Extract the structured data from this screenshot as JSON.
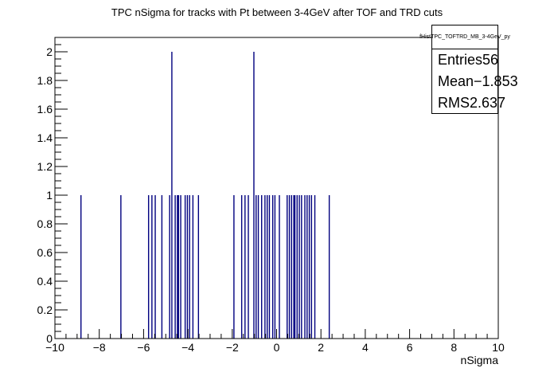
{
  "chart_data": {
    "type": "bar",
    "title": "TPC nSigma for tracks with Pt between 3-4GeV after TOF and TRD cuts",
    "xlabel": "nSigma",
    "ylabel": "",
    "xlim": [
      -10,
      10
    ],
    "ylim": [
      0,
      2.1
    ],
    "x_ticks": [
      "−10",
      "−8",
      "−6",
      "−4",
      "−2",
      "0",
      "2",
      "4",
      "6",
      "8",
      "10"
    ],
    "y_ticks": [
      "0",
      "0.2",
      "0.4",
      "0.6",
      "0.8",
      "1",
      "1.2",
      "1.4",
      "1.6",
      "1.8",
      "2"
    ],
    "bar_color": "#00007f",
    "bin_width": 0.05,
    "bins": [
      {
        "x": -8.85,
        "count": 1
      },
      {
        "x": -7.05,
        "count": 1
      },
      {
        "x": -5.8,
        "count": 1
      },
      {
        "x": -5.65,
        "count": 1
      },
      {
        "x": -5.5,
        "count": 1
      },
      {
        "x": -5.2,
        "count": 1
      },
      {
        "x": -4.85,
        "count": 1
      },
      {
        "x": -4.75,
        "count": 2
      },
      {
        "x": -4.6,
        "count": 1
      },
      {
        "x": -4.5,
        "count": 1
      },
      {
        "x": -4.45,
        "count": 1
      },
      {
        "x": -4.35,
        "count": 1
      },
      {
        "x": -4.15,
        "count": 1
      },
      {
        "x": -4.05,
        "count": 1
      },
      {
        "x": -3.95,
        "count": 1
      },
      {
        "x": -3.8,
        "count": 1
      },
      {
        "x": -3.55,
        "count": 1
      },
      {
        "x": -1.95,
        "count": 1
      },
      {
        "x": -1.6,
        "count": 1
      },
      {
        "x": -1.45,
        "count": 1
      },
      {
        "x": -1.3,
        "count": 1
      },
      {
        "x": -1.05,
        "count": 2
      },
      {
        "x": -0.95,
        "count": 1
      },
      {
        "x": -0.85,
        "count": 1
      },
      {
        "x": -0.7,
        "count": 1
      },
      {
        "x": -0.55,
        "count": 1
      },
      {
        "x": -0.45,
        "count": 1
      },
      {
        "x": -0.35,
        "count": 1
      },
      {
        "x": -0.2,
        "count": 1
      },
      {
        "x": -0.1,
        "count": 1
      },
      {
        "x": 0.1,
        "count": 1
      },
      {
        "x": 0.45,
        "count": 1
      },
      {
        "x": 0.55,
        "count": 1
      },
      {
        "x": 0.65,
        "count": 1
      },
      {
        "x": 0.75,
        "count": 1
      },
      {
        "x": 0.8,
        "count": 1
      },
      {
        "x": 0.9,
        "count": 1
      },
      {
        "x": 1.0,
        "count": 1
      },
      {
        "x": 1.1,
        "count": 1
      },
      {
        "x": 1.25,
        "count": 1
      },
      {
        "x": 1.35,
        "count": 1
      },
      {
        "x": 1.45,
        "count": 1
      },
      {
        "x": 1.55,
        "count": 1
      },
      {
        "x": 1.7,
        "count": 1
      },
      {
        "x": 2.35,
        "count": 1
      }
    ],
    "stats": {
      "name": "fHistTPC_TOFTRD_MB_3-4GeV_py",
      "entries_label": "Entries",
      "entries_value": "56",
      "mean_label": "Mean",
      "mean_value": "−1.853",
      "rms_label": "RMS",
      "rms_value": "2.637"
    }
  }
}
